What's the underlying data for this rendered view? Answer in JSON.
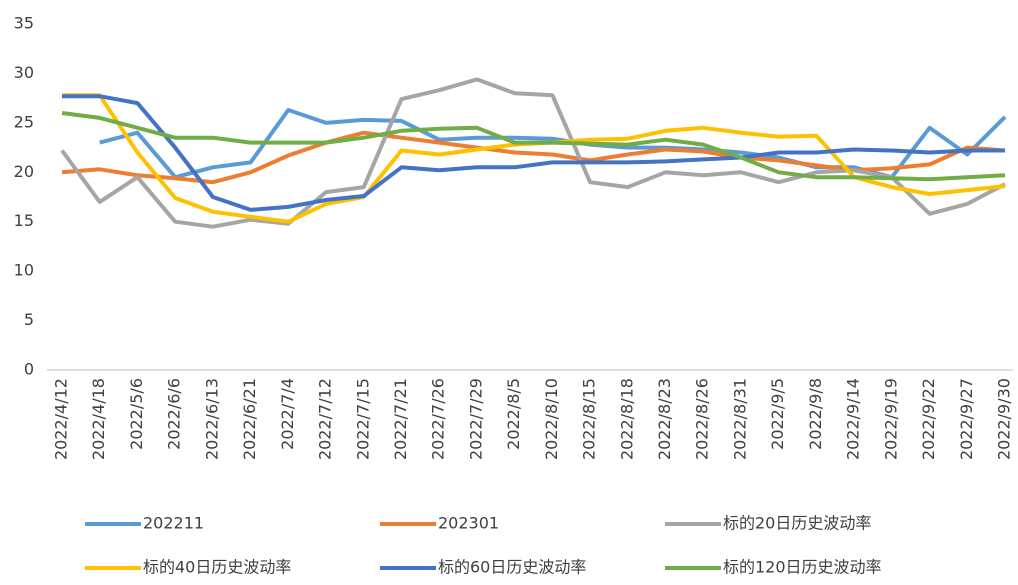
{
  "chart_data": {
    "type": "line",
    "categories": [
      "2022/4/12",
      "2022/4/18",
      "2022/5/6",
      "2022/6/6",
      "2022/6/13",
      "2022/6/21",
      "2022/7/4",
      "2022/7/12",
      "2022/7/15",
      "2022/7/21",
      "2022/7/26",
      "2022/7/29",
      "2022/8/5",
      "2022/8/10",
      "2022/8/15",
      "2022/8/18",
      "2022/8/23",
      "2022/8/26",
      "2022/8/31",
      "2022/9/5",
      "2022/9/8",
      "2022/9/14",
      "2022/9/19",
      "2022/9/22",
      "2022/9/27",
      "2022/9/30"
    ],
    "series": [
      {
        "name": "202211",
        "color": "#5b9bd5",
        "values": [
          null,
          23,
          24,
          19.5,
          20.5,
          21,
          26.3,
          25,
          25.3,
          25.2,
          23.3,
          23.5,
          23.5,
          23.4,
          22.8,
          22.5,
          22.5,
          22.3,
          22,
          21.5,
          20.5,
          20.5,
          19.5,
          24.5,
          21.8,
          25.6
        ]
      },
      {
        "name": "202301",
        "color": "#ed7d31",
        "values": [
          20,
          20.3,
          19.7,
          19.4,
          19,
          20,
          21.7,
          23,
          24,
          23.5,
          23,
          22.5,
          22,
          21.8,
          21.2,
          21.8,
          22.3,
          22.1,
          21.5,
          21.2,
          20.7,
          20.2,
          20.4,
          20.8,
          22.5,
          22.2
        ]
      },
      {
        "name": "标的20日历史波动率",
        "color": "#a5a5a5",
        "values": [
          22.2,
          17,
          19.5,
          15,
          14.5,
          15.2,
          14.8,
          18,
          18.5,
          27.4,
          28.3,
          29.4,
          28,
          27.8,
          19,
          18.5,
          20,
          19.7,
          20,
          19,
          20,
          20.2,
          19.5,
          15.8,
          16.8,
          18.8
        ]
      },
      {
        "name": "标的40日历史波动率",
        "color": "#ffc000",
        "values": [
          27.8,
          27.8,
          22,
          17.4,
          16,
          15.5,
          15,
          16.8,
          17.5,
          22.2,
          21.8,
          22.3,
          22.8,
          23,
          23.3,
          23.4,
          24.2,
          24.5,
          24,
          23.6,
          23.7,
          19.5,
          18.5,
          17.8,
          18.2,
          18.6
        ]
      },
      {
        "name": "标的60日历史波动率",
        "color": "#4472c4",
        "values": [
          27.7,
          27.7,
          27,
          22.5,
          17.5,
          16.2,
          16.5,
          17.2,
          17.6,
          20.5,
          20.2,
          20.5,
          20.5,
          21,
          21,
          21,
          21.1,
          21.3,
          21.5,
          22,
          22,
          22.3,
          22.2,
          22,
          22.2,
          22.2
        ]
      },
      {
        "name": "标的120日历史波动率",
        "color": "#70ad47",
        "values": [
          26,
          25.5,
          24.5,
          23.5,
          23.5,
          23,
          23,
          23,
          23.5,
          24.2,
          24.4,
          24.5,
          23,
          23,
          22.9,
          22.8,
          23.3,
          22.8,
          21.5,
          20,
          19.5,
          19.5,
          19.4,
          19.3,
          19.5,
          19.7
        ]
      }
    ],
    "ylim": [
      0,
      35
    ],
    "yticks": [
      0,
      5,
      10,
      15,
      20,
      25,
      30,
      35
    ],
    "grid": false
  }
}
